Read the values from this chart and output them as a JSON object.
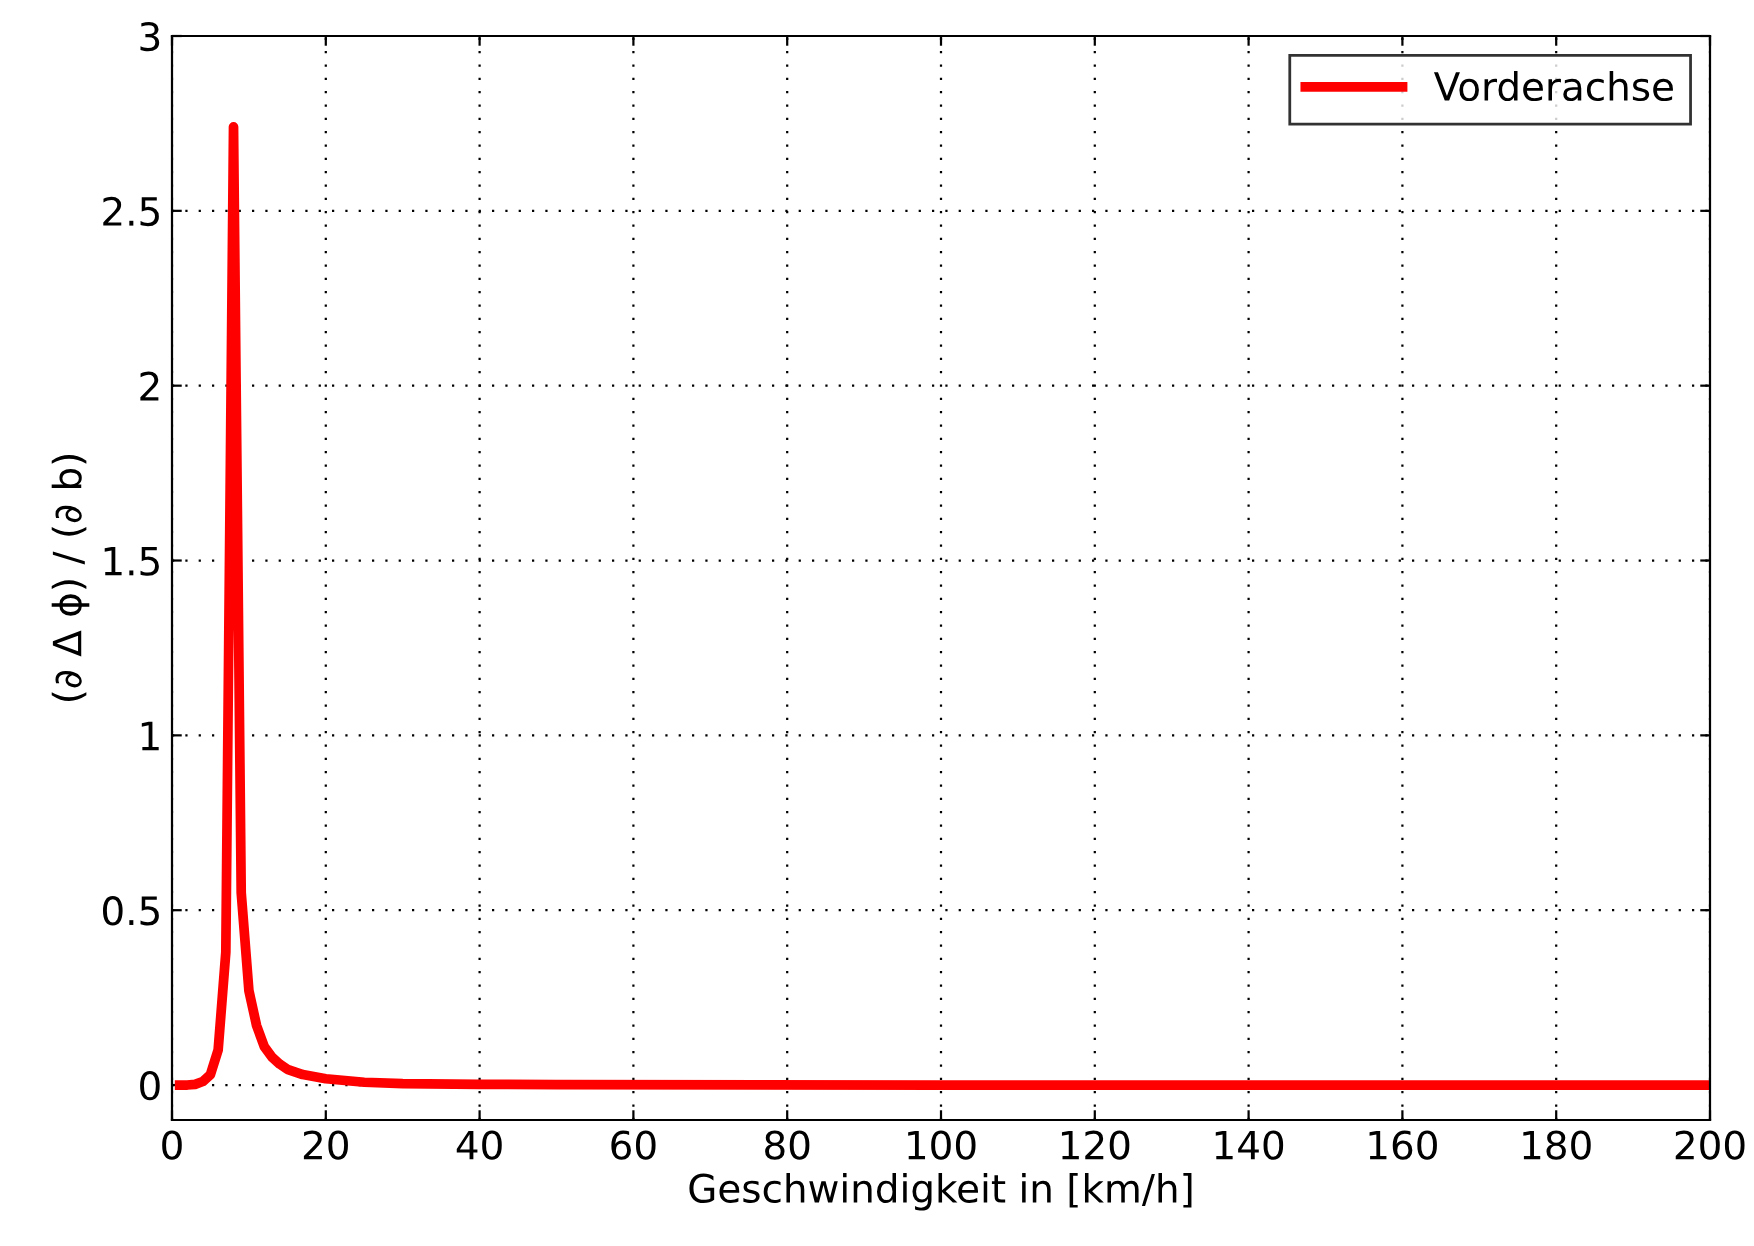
{
  "chart_data": {
    "type": "line",
    "xlabel": "Geschwindigkeit in [km/h]",
    "ylabel": "(∂ Δ ϕ) / (∂ b)",
    "x": [
      1,
      2,
      3,
      4,
      5,
      6,
      7,
      8,
      9,
      10,
      11,
      12,
      13,
      14,
      15,
      17,
      20,
      25,
      30,
      40,
      50,
      100,
      150,
      200
    ],
    "series": [
      {
        "name": "Vorderachse",
        "color": "#ff0000",
        "values": [
          0,
          0,
          0.002,
          0.01,
          0.03,
          0.1,
          0.38,
          2.74,
          0.55,
          0.27,
          0.17,
          0.11,
          0.08,
          0.06,
          0.045,
          0.03,
          0.018,
          0.008,
          0.004,
          0.002,
          0.001,
          0,
          0,
          0
        ]
      }
    ],
    "xlim": [
      0,
      200
    ],
    "xticks": [
      0,
      20,
      40,
      60,
      80,
      100,
      120,
      140,
      160,
      180,
      200
    ],
    "ylim": [
      -0.1,
      3
    ],
    "yticks": [
      0,
      0.5,
      1,
      1.5,
      2,
      2.5,
      3
    ],
    "grid": true,
    "legend": "top right",
    "line_style": "solid",
    "marker": "none"
  }
}
